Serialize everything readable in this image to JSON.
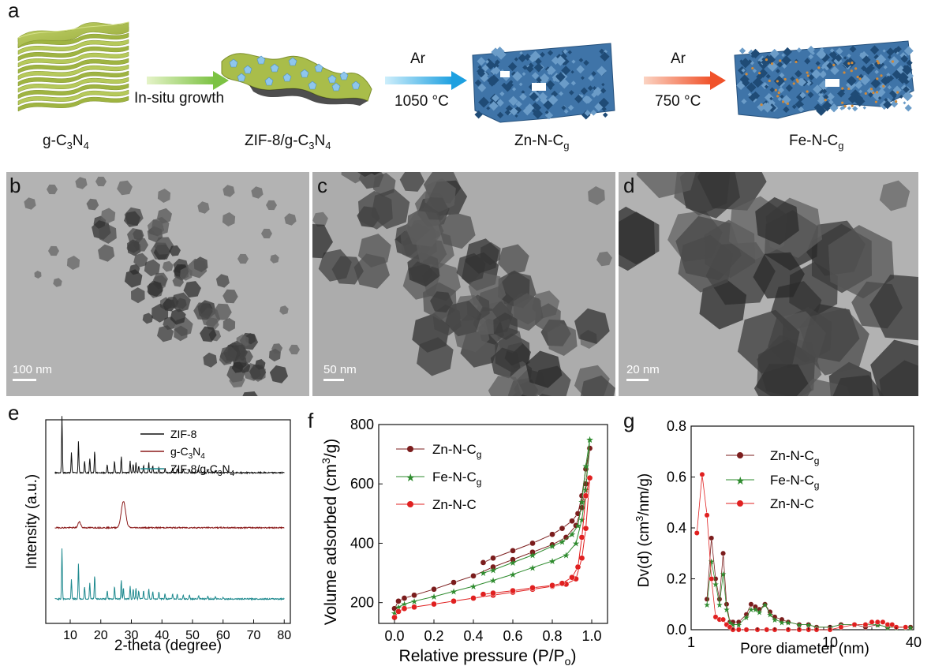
{
  "panel_a": {
    "letter": "a",
    "step1": {
      "prefix": "g-C",
      "sub1": "3",
      "mid": "N",
      "sub2": "4"
    },
    "step2": {
      "prefix": "ZIF-8/g-C",
      "sub1": "3",
      "mid": "N",
      "sub2": "4"
    },
    "step3": {
      "prefix": "Zn-N-C",
      "sub1": "g"
    },
    "step4": {
      "prefix": "Fe-N-C",
      "sub1": "g"
    },
    "arrow1_label": "In-situ growth",
    "arrow2_top": "Ar",
    "arrow2_bottom": "1050 °C",
    "arrow3_top": "Ar",
    "arrow3_bottom": "750 °C",
    "colors": {
      "green_sheet": "#a9bd4a",
      "blue_frame": "#3f74a8",
      "arrow_green": "#7cc243",
      "arrow_blue": "#1ea0e0",
      "arrow_orange": "#f0522a"
    }
  },
  "panel_b": {
    "letter": "b",
    "scale": "100 nm"
  },
  "panel_c": {
    "letter": "c",
    "scale": "50 nm"
  },
  "panel_d": {
    "letter": "d",
    "scale": "20 nm"
  },
  "chart_data": [
    {
      "panel": "e",
      "type": "line",
      "xlabel": "2-theta (degree)",
      "ylabel": "Intensity (a.u.)",
      "xlim": [
        2,
        82
      ],
      "xticks": [
        "10",
        "20",
        "30",
        "40",
        "50",
        "60",
        "70",
        "80"
      ],
      "xtick_values": [
        10,
        20,
        30,
        40,
        50,
        60,
        70,
        80
      ],
      "legend_position": "top-right",
      "series": [
        {
          "name": "ZIF-8",
          "color": "#111111",
          "baseline": 0.74,
          "peaks": [
            [
              7.3,
              1.0
            ],
            [
              10.4,
              0.35
            ],
            [
              12.7,
              0.55
            ],
            [
              14.7,
              0.2
            ],
            [
              16.4,
              0.25
            ],
            [
              18.0,
              0.38
            ],
            [
              22.1,
              0.15
            ],
            [
              24.5,
              0.2
            ],
            [
              26.7,
              0.28
            ],
            [
              29.6,
              0.2
            ],
            [
              30.6,
              0.15
            ],
            [
              31.5,
              0.18
            ],
            [
              32.4,
              0.12
            ],
            [
              34.0,
              0.13
            ],
            [
              35.7,
              0.18
            ],
            [
              37.0,
              0.12
            ],
            [
              39.0,
              0.1
            ],
            [
              41.0,
              0.08
            ],
            [
              43.5,
              0.08
            ],
            [
              45.0,
              0.07
            ],
            [
              47.0,
              0.06
            ],
            [
              49.0,
              0.05
            ],
            [
              52.0,
              0.05
            ],
            [
              55.0,
              0.05
            ],
            [
              57.5,
              0.04
            ]
          ]
        },
        {
          "name": "g-C3N4",
          "color": "#8b1a1a",
          "baseline": 0.47,
          "hump": [
            27.4,
            0.13
          ],
          "small": [
            [
              13.0,
              0.03
            ]
          ]
        },
        {
          "name": "ZIF-8/g-C3N4",
          "color": "#1f8a8f",
          "baseline": 0.12,
          "peaks": [
            [
              7.3,
              0.9
            ],
            [
              10.4,
              0.35
            ],
            [
              12.7,
              0.62
            ],
            [
              14.7,
              0.22
            ],
            [
              16.4,
              0.28
            ],
            [
              18.0,
              0.42
            ],
            [
              22.1,
              0.15
            ],
            [
              24.5,
              0.22
            ],
            [
              26.7,
              0.34
            ],
            [
              27.4,
              0.2
            ],
            [
              29.6,
              0.22
            ],
            [
              30.6,
              0.18
            ],
            [
              31.5,
              0.2
            ],
            [
              32.4,
              0.14
            ],
            [
              34.0,
              0.15
            ],
            [
              35.7,
              0.18
            ],
            [
              37.0,
              0.13
            ],
            [
              39.0,
              0.12
            ],
            [
              41.0,
              0.1
            ],
            [
              43.5,
              0.09
            ],
            [
              45.0,
              0.08
            ],
            [
              47.0,
              0.07
            ],
            [
              49.0,
              0.06
            ],
            [
              52.0,
              0.05
            ],
            [
              55.0,
              0.05
            ],
            [
              57.5,
              0.04
            ],
            [
              60.0,
              0.03
            ]
          ]
        }
      ],
      "legend": {
        "l1": "ZIF-8",
        "l2_prefix": "g-C",
        "l2_sub1": "3",
        "l2_mid": "N",
        "l2_sub2": "4",
        "l3_prefix": "ZIF-8/g-C",
        "l3_sub1": "3",
        "l3_mid": "N",
        "l3_sub2": "4"
      }
    },
    {
      "panel": "f",
      "type": "line",
      "xlabel_prefix": "Relative pressure (P/P",
      "xlabel_sub": "o",
      "xlabel_suffix": ")",
      "ylabel_prefix": "Volume  adsorbed (cm",
      "ylabel_sup": "3",
      "ylabel_suffix": "/g)",
      "xlim": [
        -0.08,
        1.08
      ],
      "ylim": [
        130,
        800
      ],
      "xticks": [
        "0.0",
        "0.2",
        "0.4",
        "0.6",
        "0.8",
        "1.0"
      ],
      "xtick_values": [
        0.0,
        0.2,
        0.4,
        0.6,
        0.8,
        1.0
      ],
      "yticks": [
        "200",
        "400",
        "600",
        "800"
      ],
      "ytick_values": [
        200,
        400,
        600,
        800
      ],
      "legend_position": "top-left",
      "series": [
        {
          "name": "Zn-N-Cg",
          "color": "#7b1d1d",
          "marker": "circle",
          "adsorption": [
            [
              0.0,
              180
            ],
            [
              0.02,
              205
            ],
            [
              0.05,
              215
            ],
            [
              0.1,
              225
            ],
            [
              0.2,
              245
            ],
            [
              0.3,
              268
            ],
            [
              0.4,
              290
            ],
            [
              0.5,
              320
            ],
            [
              0.6,
              345
            ],
            [
              0.7,
              370
            ],
            [
              0.8,
              395
            ],
            [
              0.87,
              420
            ],
            [
              0.92,
              460
            ],
            [
              0.95,
              520
            ],
            [
              0.97,
              600
            ],
            [
              0.99,
              720
            ]
          ],
          "desorption": [
            [
              0.99,
              720
            ],
            [
              0.97,
              650
            ],
            [
              0.95,
              560
            ],
            [
              0.93,
              500
            ],
            [
              0.9,
              475
            ],
            [
              0.85,
              450
            ],
            [
              0.8,
              430
            ],
            [
              0.7,
              400
            ],
            [
              0.6,
              375
            ],
            [
              0.5,
              350
            ],
            [
              0.45,
              335
            ]
          ]
        },
        {
          "name": "Fe-N-Cg",
          "color": "#2e8b2e",
          "marker": "star",
          "adsorption": [
            [
              0.0,
              165
            ],
            [
              0.02,
              185
            ],
            [
              0.05,
              195
            ],
            [
              0.1,
              205
            ],
            [
              0.2,
              220
            ],
            [
              0.3,
              238
            ],
            [
              0.4,
              255
            ],
            [
              0.5,
              275
            ],
            [
              0.6,
              295
            ],
            [
              0.7,
              318
            ],
            [
              0.8,
              340
            ],
            [
              0.87,
              360
            ],
            [
              0.92,
              400
            ],
            [
              0.95,
              480
            ],
            [
              0.97,
              580
            ],
            [
              0.99,
              750
            ]
          ],
          "desorption": [
            [
              0.99,
              750
            ],
            [
              0.97,
              660
            ],
            [
              0.95,
              540
            ],
            [
              0.93,
              460
            ],
            [
              0.9,
              430
            ],
            [
              0.85,
              405
            ],
            [
              0.8,
              390
            ],
            [
              0.7,
              360
            ],
            [
              0.6,
              335
            ],
            [
              0.5,
              310
            ],
            [
              0.45,
              300
            ]
          ]
        },
        {
          "name": "Zn-N-C",
          "color": "#e02020",
          "marker": "circle",
          "adsorption": [
            [
              0.0,
              150
            ],
            [
              0.02,
              170
            ],
            [
              0.05,
              180
            ],
            [
              0.1,
              185
            ],
            [
              0.2,
              195
            ],
            [
              0.3,
              205
            ],
            [
              0.4,
              215
            ],
            [
              0.5,
              225
            ],
            [
              0.6,
              235
            ],
            [
              0.7,
              245
            ],
            [
              0.8,
              255
            ],
            [
              0.87,
              262
            ],
            [
              0.92,
              280
            ],
            [
              0.95,
              350
            ],
            [
              0.97,
              450
            ],
            [
              0.99,
              620
            ]
          ],
          "desorption": [
            [
              0.99,
              620
            ],
            [
              0.97,
              560
            ],
            [
              0.95,
              420
            ],
            [
              0.93,
              320
            ],
            [
              0.9,
              285
            ],
            [
              0.85,
              265
            ],
            [
              0.8,
              258
            ],
            [
              0.7,
              250
            ],
            [
              0.6,
              240
            ],
            [
              0.5,
              232
            ],
            [
              0.45,
              228
            ]
          ]
        }
      ],
      "legend": {
        "l1_prefix": "Zn-N-C",
        "l1_sub": "g",
        "l2_prefix": "Fe-N-C",
        "l2_sub": "g",
        "l3": "Zn-N-C"
      }
    },
    {
      "panel": "g",
      "type": "line",
      "xscale": "log",
      "xlabel": "Pore diameter (nm)",
      "ylabel_prefix": "Dv(d) (cm",
      "ylabel_sup": "3",
      "ylabel_suffix": "/nm/g)",
      "xlim": [
        1,
        40
      ],
      "ylim": [
        0,
        0.8
      ],
      "xticks": [
        "1",
        "10",
        "40"
      ],
      "xtick_values": [
        1,
        10,
        40
      ],
      "yticks": [
        "0.0",
        "0.2",
        "0.4",
        "0.6",
        "0.8"
      ],
      "ytick_values": [
        0.0,
        0.2,
        0.4,
        0.6,
        0.8
      ],
      "legend_position": "top-center",
      "series": [
        {
          "name": "Zn-N-Cg",
          "color": "#7b1d1d",
          "marker": "circle",
          "points": [
            [
              1.3,
              0.12
            ],
            [
              1.4,
              0.36
            ],
            [
              1.5,
              0.2
            ],
            [
              1.6,
              0.12
            ],
            [
              1.7,
              0.3
            ],
            [
              1.8,
              0.1
            ],
            [
              1.9,
              0.03
            ],
            [
              2.0,
              0.03
            ],
            [
              2.2,
              0.03
            ],
            [
              2.5,
              0.06
            ],
            [
              2.7,
              0.1
            ],
            [
              2.9,
              0.09
            ],
            [
              3.1,
              0.08
            ],
            [
              3.4,
              0.1
            ],
            [
              3.7,
              0.07
            ],
            [
              4.0,
              0.05
            ],
            [
              4.5,
              0.04
            ],
            [
              5,
              0.03
            ],
            [
              6,
              0.02
            ],
            [
              7,
              0.02
            ],
            [
              8,
              0.01
            ],
            [
              10,
              0.01
            ],
            [
              12,
              0.02
            ],
            [
              15,
              0.02
            ],
            [
              18,
              0.01
            ],
            [
              22,
              0.02
            ],
            [
              26,
              0.01
            ],
            [
              30,
              0.01
            ],
            [
              35,
              0.01
            ],
            [
              38,
              0.01
            ]
          ]
        },
        {
          "name": "Fe-N-Cg",
          "color": "#2e8b2e",
          "marker": "star",
          "points": [
            [
              1.3,
              0.1
            ],
            [
              1.4,
              0.27
            ],
            [
              1.5,
              0.18
            ],
            [
              1.6,
              0.1
            ],
            [
              1.7,
              0.22
            ],
            [
              1.8,
              0.08
            ],
            [
              1.9,
              0.03
            ],
            [
              2.0,
              0.02
            ],
            [
              2.2,
              0.02
            ],
            [
              2.5,
              0.05
            ],
            [
              2.7,
              0.08
            ],
            [
              2.9,
              0.08
            ],
            [
              3.1,
              0.07
            ],
            [
              3.4,
              0.1
            ],
            [
              3.7,
              0.06
            ],
            [
              4.0,
              0.04
            ],
            [
              4.5,
              0.03
            ],
            [
              5,
              0.03
            ],
            [
              6,
              0.02
            ],
            [
              7,
              0.02
            ],
            [
              8,
              0.01
            ],
            [
              10,
              0.01
            ],
            [
              12,
              0.02
            ],
            [
              15,
              0.02
            ],
            [
              18,
              0.02
            ],
            [
              22,
              0.02
            ],
            [
              26,
              0.01
            ],
            [
              30,
              0.01
            ],
            [
              35,
              0.01
            ],
            [
              38,
              0.01
            ]
          ]
        },
        {
          "name": "Zn-N-C",
          "color": "#e02020",
          "marker": "circle",
          "points": [
            [
              1.1,
              0.38
            ],
            [
              1.2,
              0.61
            ],
            [
              1.3,
              0.45
            ],
            [
              1.4,
              0.2
            ],
            [
              1.5,
              0.05
            ],
            [
              1.6,
              0.04
            ],
            [
              1.7,
              0.04
            ],
            [
              1.8,
              0.02
            ],
            [
              1.9,
              0.01
            ],
            [
              2.0,
              0.0
            ],
            [
              2.2,
              0.0
            ],
            [
              2.5,
              0.0
            ],
            [
              3,
              0.0
            ],
            [
              3.5,
              0.0
            ],
            [
              4,
              0.0
            ],
            [
              5,
              0.0
            ],
            [
              6,
              0.0
            ],
            [
              7,
              0.0
            ],
            [
              8,
              0.0
            ],
            [
              10,
              0.0
            ],
            [
              12,
              0.01
            ],
            [
              15,
              0.02
            ],
            [
              18,
              0.02
            ],
            [
              20,
              0.03
            ],
            [
              22,
              0.03
            ],
            [
              24,
              0.03
            ],
            [
              26,
              0.02
            ],
            [
              28,
              0.02
            ],
            [
              30,
              0.01
            ],
            [
              35,
              0.01
            ]
          ]
        }
      ],
      "legend": {
        "l1_prefix": "Zn-N-C",
        "l1_sub": "g",
        "l2_prefix": "Fe-N-C",
        "l2_sub": "g",
        "l3": "Zn-N-C"
      }
    }
  ],
  "panel_e_letter": "e",
  "panel_f_letter": "f",
  "panel_g_letter": "g"
}
